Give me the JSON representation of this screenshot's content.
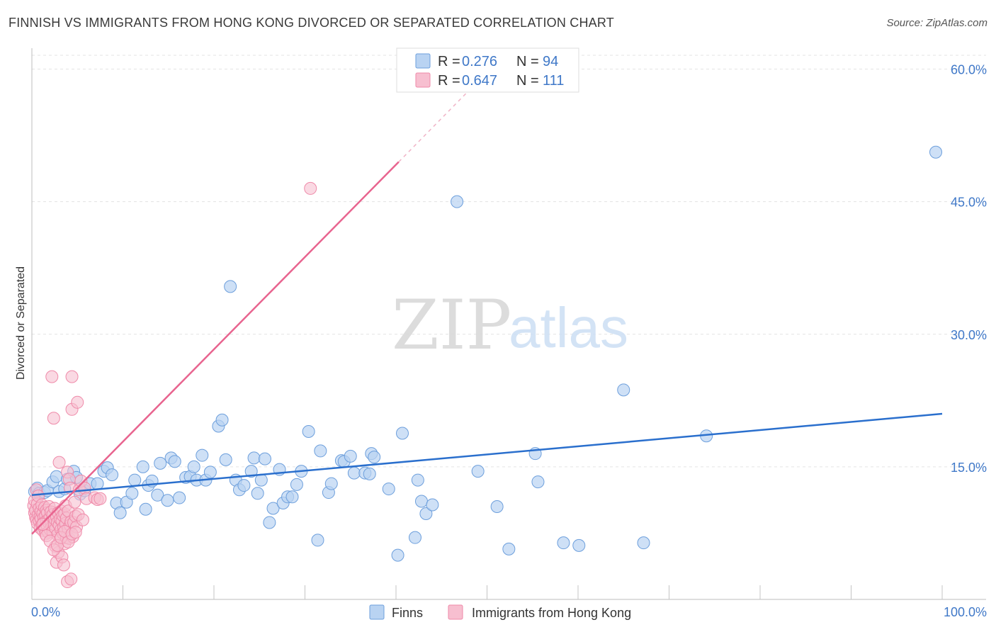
{
  "title": "FINNISH VS IMMIGRANTS FROM HONG KONG DIVORCED OR SEPARATED CORRELATION CHART",
  "source": "Source: ZipAtlas.com",
  "watermark": {
    "zip": "ZIP",
    "atlas": "atlas"
  },
  "colors": {
    "finns_fill": "#b9d3f2",
    "finns_stroke": "#6d9fdc",
    "finns_line": "#2a6fcd",
    "hk_fill": "#f7bfd0",
    "hk_stroke": "#ef8aa9",
    "hk_line": "#e8648f",
    "axis_text": "#3f78c8"
  },
  "legend": {
    "rows": [
      {
        "r_label": "R =",
        "r_value": "0.276",
        "n_label": "N =",
        "n_value": "94"
      },
      {
        "r_label": "R =",
        "r_value": "0.647",
        "n_label": "N =",
        "n_value": "111"
      }
    ]
  },
  "chart_data": {
    "type": "scatter",
    "title": "FINNISH VS IMMIGRANTS FROM HONG KONG DIVORCED OR SEPARATED CORRELATION CHART",
    "xlabel": "",
    "ylabel": "Divorced or Separated",
    "xlim": [
      0,
      100
    ],
    "ylim": [
      0,
      63
    ],
    "x_tick_labels": {
      "min": "0.0%",
      "max": "100.0%"
    },
    "y_ticks": [
      {
        "value": 15,
        "label": "15.0%"
      },
      {
        "value": 30,
        "label": "30.0%"
      },
      {
        "value": 45,
        "label": "45.0%"
      },
      {
        "value": 60,
        "label": "60.0%"
      }
    ],
    "legend_position": "bottom",
    "series": [
      {
        "name": "Finns",
        "R": 0.276,
        "N": 94,
        "trend": {
          "x0": 0,
          "y0": 11.8,
          "x1": 100,
          "y1": 21.0
        },
        "points": [
          [
            0.3,
            12.2
          ],
          [
            0.6,
            12.6
          ],
          [
            0.8,
            12.0
          ],
          [
            1.4,
            12.1
          ],
          [
            1.7,
            12.3
          ],
          [
            2.3,
            13.3
          ],
          [
            2.7,
            13.9
          ],
          [
            3.0,
            12.2
          ],
          [
            3.6,
            12.5
          ],
          [
            3.9,
            13.6
          ],
          [
            4.6,
            14.5
          ],
          [
            4.9,
            13.8
          ],
          [
            5.3,
            11.9
          ],
          [
            5.8,
            12.3
          ],
          [
            6.4,
            13.1
          ],
          [
            7.2,
            13.1
          ],
          [
            7.9,
            14.5
          ],
          [
            8.3,
            14.9
          ],
          [
            8.8,
            14.1
          ],
          [
            9.3,
            10.9
          ],
          [
            9.7,
            9.8
          ],
          [
            10.4,
            11.0
          ],
          [
            11.0,
            12.0
          ],
          [
            11.3,
            13.5
          ],
          [
            12.2,
            15.0
          ],
          [
            12.5,
            10.2
          ],
          [
            12.8,
            12.9
          ],
          [
            13.2,
            13.4
          ],
          [
            13.8,
            11.8
          ],
          [
            14.1,
            15.4
          ],
          [
            14.9,
            11.2
          ],
          [
            15.3,
            16.0
          ],
          [
            15.7,
            15.6
          ],
          [
            16.2,
            11.5
          ],
          [
            16.9,
            13.8
          ],
          [
            17.4,
            13.9
          ],
          [
            17.8,
            15.0
          ],
          [
            18.1,
            13.5
          ],
          [
            18.7,
            16.3
          ],
          [
            19.1,
            13.5
          ],
          [
            19.6,
            14.4
          ],
          [
            20.5,
            19.6
          ],
          [
            20.9,
            20.3
          ],
          [
            21.3,
            15.8
          ],
          [
            21.8,
            35.4
          ],
          [
            22.4,
            13.5
          ],
          [
            22.8,
            12.4
          ],
          [
            23.3,
            12.9
          ],
          [
            24.1,
            14.5
          ],
          [
            24.4,
            16.0
          ],
          [
            24.8,
            12.0
          ],
          [
            25.2,
            13.5
          ],
          [
            25.6,
            15.9
          ],
          [
            26.1,
            8.7
          ],
          [
            26.5,
            10.3
          ],
          [
            27.2,
            14.7
          ],
          [
            27.6,
            10.9
          ],
          [
            28.1,
            11.6
          ],
          [
            28.6,
            11.6
          ],
          [
            29.1,
            13.0
          ],
          [
            29.6,
            14.5
          ],
          [
            30.4,
            19.0
          ],
          [
            31.4,
            6.7
          ],
          [
            31.7,
            16.8
          ],
          [
            32.6,
            12.1
          ],
          [
            32.9,
            13.1
          ],
          [
            34.0,
            15.7
          ],
          [
            34.3,
            15.6
          ],
          [
            35.0,
            16.2
          ],
          [
            35.4,
            14.3
          ],
          [
            36.6,
            14.3
          ],
          [
            37.1,
            14.2
          ],
          [
            37.3,
            16.5
          ],
          [
            37.6,
            16.1
          ],
          [
            39.2,
            12.5
          ],
          [
            40.2,
            5.0
          ],
          [
            40.7,
            18.8
          ],
          [
            42.1,
            7.0
          ],
          [
            42.4,
            13.5
          ],
          [
            42.8,
            11.1
          ],
          [
            43.3,
            9.7
          ],
          [
            44.0,
            10.7
          ],
          [
            46.7,
            45.0
          ],
          [
            49.0,
            14.5
          ],
          [
            51.1,
            10.5
          ],
          [
            52.4,
            5.7
          ],
          [
            55.3,
            16.5
          ],
          [
            55.6,
            13.3
          ],
          [
            58.4,
            6.4
          ],
          [
            60.1,
            6.1
          ],
          [
            65.0,
            23.7
          ],
          [
            67.2,
            6.4
          ],
          [
            74.1,
            18.5
          ],
          [
            99.3,
            50.6
          ]
        ]
      },
      {
        "name": "Immigrants from Hong Kong",
        "R": 0.647,
        "N": 111,
        "trend": {
          "x0": 0,
          "y0": 7.4,
          "x1": 40.3,
          "y1": 49.5,
          "dash_to_x": 48.8,
          "dash_to_y": 58.4
        },
        "points": [
          [
            0.2,
            10.6
          ],
          [
            0.3,
            9.8
          ],
          [
            0.3,
            11.2
          ],
          [
            0.4,
            9.3
          ],
          [
            0.4,
            10.1
          ],
          [
            0.5,
            12.4
          ],
          [
            0.5,
            9.0
          ],
          [
            0.6,
            10.8
          ],
          [
            0.6,
            8.6
          ],
          [
            0.7,
            9.6
          ],
          [
            0.7,
            11.7
          ],
          [
            0.8,
            8.9
          ],
          [
            0.8,
            10.3
          ],
          [
            0.9,
            9.4
          ],
          [
            0.9,
            8.1
          ],
          [
            1.0,
            10.0
          ],
          [
            1.0,
            9.1
          ],
          [
            1.1,
            8.4
          ],
          [
            1.1,
            10.7
          ],
          [
            1.2,
            9.7
          ],
          [
            1.2,
            7.8
          ],
          [
            1.3,
            9.2
          ],
          [
            1.3,
            8.7
          ],
          [
            1.4,
            10.4
          ],
          [
            1.4,
            8.0
          ],
          [
            1.5,
            9.5
          ],
          [
            1.5,
            7.4
          ],
          [
            1.6,
            8.9
          ],
          [
            1.6,
            10.1
          ],
          [
            1.7,
            8.3
          ],
          [
            1.7,
            9.8
          ],
          [
            1.8,
            7.6
          ],
          [
            1.8,
            9.0
          ],
          [
            1.9,
            8.6
          ],
          [
            1.9,
            10.5
          ],
          [
            2.0,
            9.3
          ],
          [
            2.0,
            7.9
          ],
          [
            2.1,
            8.8
          ],
          [
            2.1,
            9.9
          ],
          [
            2.2,
            8.2
          ],
          [
            2.2,
            25.2
          ],
          [
            2.3,
            9.6
          ],
          [
            2.3,
            7.7
          ],
          [
            2.4,
            20.5
          ],
          [
            2.4,
            8.5
          ],
          [
            2.5,
            9.1
          ],
          [
            2.5,
            10.3
          ],
          [
            2.6,
            6.0
          ],
          [
            2.6,
            8.0
          ],
          [
            2.7,
            9.4
          ],
          [
            2.7,
            4.2
          ],
          [
            2.8,
            8.7
          ],
          [
            2.8,
            7.3
          ],
          [
            2.9,
            9.8
          ],
          [
            2.9,
            5.3
          ],
          [
            3.0,
            8.4
          ],
          [
            3.0,
            15.5
          ],
          [
            3.1,
            9.1
          ],
          [
            3.1,
            6.8
          ],
          [
            3.2,
            10.0
          ],
          [
            3.2,
            7.9
          ],
          [
            3.3,
            8.9
          ],
          [
            3.3,
            4.8
          ],
          [
            3.4,
            9.5
          ],
          [
            3.4,
            7.5
          ],
          [
            3.5,
            3.9
          ],
          [
            3.5,
            8.2
          ],
          [
            3.6,
            9.7
          ],
          [
            3.6,
            6.3
          ],
          [
            3.7,
            8.6
          ],
          [
            3.7,
            10.6
          ],
          [
            3.8,
            7.0
          ],
          [
            3.8,
            9.2
          ],
          [
            3.9,
            14.4
          ],
          [
            3.9,
            2.0
          ],
          [
            4.0,
            8.0
          ],
          [
            4.0,
            10.0
          ],
          [
            4.1,
            13.6
          ],
          [
            4.1,
            6.9
          ],
          [
            4.2,
            8.4
          ],
          [
            4.2,
            12.6
          ],
          [
            4.3,
            2.3
          ],
          [
            4.3,
            8.8
          ],
          [
            4.4,
            21.5
          ],
          [
            4.4,
            25.2
          ],
          [
            4.5,
            7.1
          ],
          [
            4.6,
            8.7
          ],
          [
            4.7,
            11.0
          ],
          [
            4.8,
            9.4
          ],
          [
            4.9,
            8.2
          ],
          [
            5.0,
            22.3
          ],
          [
            5.1,
            9.6
          ],
          [
            5.2,
            12.4
          ],
          [
            5.4,
            13.4
          ],
          [
            5.6,
            9.0
          ],
          [
            5.8,
            12.6
          ],
          [
            6.0,
            11.4
          ],
          [
            6.9,
            11.5
          ],
          [
            7.2,
            11.3
          ],
          [
            7.5,
            11.4
          ],
          [
            1.2,
            8.5
          ],
          [
            1.6,
            7.2
          ],
          [
            2.0,
            6.6
          ],
          [
            2.4,
            5.6
          ],
          [
            2.8,
            6.1
          ],
          [
            3.2,
            7.0
          ],
          [
            3.6,
            7.7
          ],
          [
            4.0,
            6.5
          ],
          [
            4.4,
            7.4
          ],
          [
            4.8,
            7.6
          ],
          [
            30.6,
            46.5
          ]
        ]
      }
    ]
  },
  "bottom_legend": {
    "finns": "Finns",
    "hk": "Immigrants from Hong Kong"
  }
}
